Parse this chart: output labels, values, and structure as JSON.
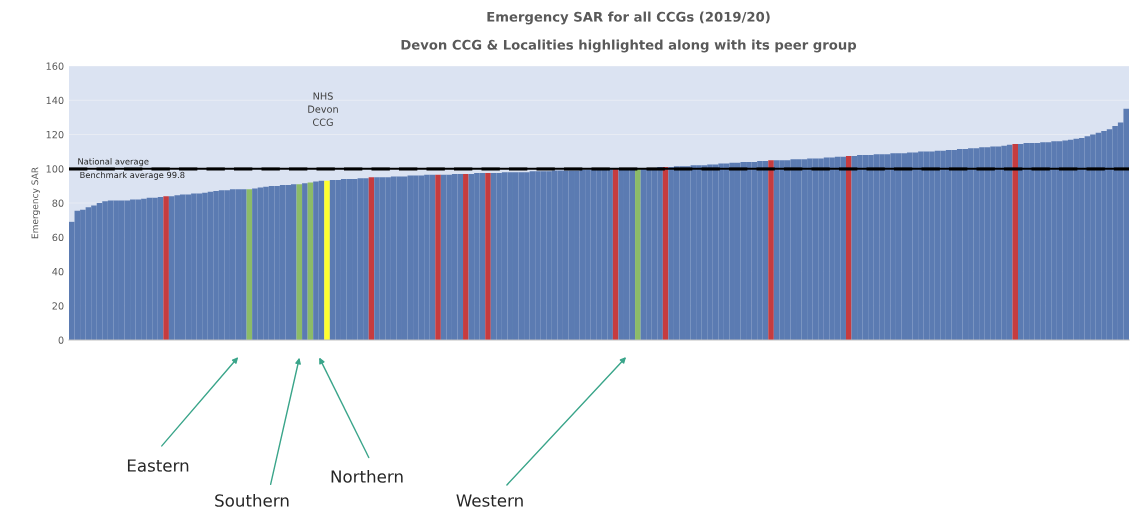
{
  "chart_data": {
    "type": "bar",
    "title": "Emergency SAR for all CCGs (2019/20)",
    "subtitle": "Devon CCG & Localities highlighted along with its peer group",
    "ylabel": "Emergency SAR",
    "categories": [
      null,
      null,
      null,
      null,
      null,
      null,
      null,
      null,
      null,
      null,
      null,
      null,
      null,
      null,
      null,
      null,
      null,
      null,
      null,
      null,
      null,
      null,
      null,
      null,
      null,
      null,
      null,
      null,
      null,
      null,
      null,
      null,
      null,
      null,
      null,
      null,
      null,
      null,
      null,
      null,
      null,
      null,
      null,
      null,
      null,
      null,
      null,
      null,
      null,
      null,
      null,
      null,
      null,
      null,
      null,
      null,
      null,
      null,
      null,
      null,
      null,
      null,
      null,
      null,
      null,
      null,
      null,
      null,
      null,
      null,
      null,
      null,
      null,
      null,
      null,
      null,
      null,
      null,
      null,
      null,
      null,
      null,
      null,
      null,
      null,
      null,
      null,
      null,
      null,
      null,
      null,
      null,
      null,
      null,
      null,
      null,
      null,
      null,
      null,
      null,
      null,
      null,
      null,
      null,
      null,
      null,
      null,
      null,
      null,
      null,
      null,
      null,
      null,
      null,
      null,
      null,
      null,
      null,
      null,
      null,
      null,
      null,
      null,
      null,
      null,
      null,
      null,
      null,
      null,
      null,
      null,
      null,
      null,
      null,
      null,
      null,
      null,
      null,
      null,
      null,
      null,
      null,
      null,
      null,
      null,
      null,
      null,
      null,
      null,
      null,
      null,
      null,
      null,
      null,
      null,
      null,
      null,
      null,
      null,
      null,
      null,
      null,
      null,
      null,
      null,
      null,
      null,
      null,
      null,
      null,
      null,
      null,
      null,
      null,
      null,
      null,
      null,
      null,
      null,
      null,
      null,
      null,
      null,
      null,
      null,
      null,
      null,
      null,
      null,
      null,
      null
    ],
    "values": [
      69,
      75.5,
      76,
      77.5,
      78.5,
      80,
      81,
      81.5,
      81.5,
      81.5,
      81.5,
      82,
      82,
      82.5,
      83,
      83,
      83.5,
      84,
      84,
      84.5,
      85,
      85,
      85.5,
      85.5,
      86,
      86.5,
      87,
      87.5,
      87.5,
      88,
      88,
      88,
      88,
      88.5,
      89,
      89.5,
      90,
      90,
      90.5,
      90.5,
      91,
      91,
      91.5,
      92,
      92.5,
      93,
      93,
      93.5,
      93.5,
      94,
      94,
      94,
      94.5,
      94.5,
      95,
      95,
      95,
      95,
      95.5,
      95.5,
      95.5,
      96,
      96,
      96,
      96.5,
      96.5,
      96.5,
      96.5,
      96.5,
      97,
      97,
      97,
      97,
      97.5,
      97.5,
      97.5,
      97.5,
      97.5,
      98,
      98,
      98,
      98,
      98,
      98.5,
      98.5,
      98.5,
      98.5,
      99,
      99,
      99,
      99,
      99,
      99.5,
      99.5,
      99.5,
      99.5,
      100,
      100,
      100,
      100,
      100,
      100,
      100,
      100.5,
      100.5,
      100.5,
      101,
      101,
      101,
      101.5,
      101.5,
      101.5,
      102,
      102,
      102,
      102.5,
      102.5,
      103,
      103,
      103.5,
      103.5,
      104,
      104,
      104,
      104.5,
      104.5,
      105,
      105,
      105,
      105,
      105.5,
      105.5,
      105.5,
      106,
      106,
      106,
      106.5,
      106.5,
      107,
      107,
      107.5,
      107.5,
      108,
      108,
      108,
      108.5,
      108.5,
      108.5,
      109,
      109,
      109,
      109.5,
      109.5,
      110,
      110,
      110,
      110.5,
      110.5,
      111,
      111,
      111.5,
      111.5,
      112,
      112,
      112.5,
      112.5,
      113,
      113,
      113.5,
      114,
      114.5,
      114.5,
      115,
      115,
      115,
      115.5,
      115.5,
      116,
      116,
      116.5,
      117,
      117.5,
      118,
      119,
      120,
      121,
      122,
      123,
      125,
      127,
      135
    ],
    "colors": [
      "#5b7bb2",
      "#5b7bb2",
      "#5b7bb2",
      "#5b7bb2",
      "#5b7bb2",
      "#5b7bb2",
      "#5b7bb2",
      "#5b7bb2",
      "#5b7bb2",
      "#5b7bb2",
      "#5b7bb2",
      "#5b7bb2",
      "#5b7bb2",
      "#5b7bb2",
      "#5b7bb2",
      "#5b7bb2",
      "#5b7bb2",
      "#c63c3f",
      "#5b7bb2",
      "#5b7bb2",
      "#5b7bb2",
      "#5b7bb2",
      "#5b7bb2",
      "#5b7bb2",
      "#5b7bb2",
      "#5b7bb2",
      "#5b7bb2",
      "#5b7bb2",
      "#5b7bb2",
      "#5b7bb2",
      "#5b7bb2",
      "#5b7bb2",
      "#8cbb68",
      "#5b7bb2",
      "#5b7bb2",
      "#5b7bb2",
      "#5b7bb2",
      "#5b7bb2",
      "#5b7bb2",
      "#5b7bb2",
      "#5b7bb2",
      "#8cbb68",
      "#5b7bb2",
      "#8cbb68",
      "#5b7bb2",
      "#5b7bb2",
      "#ffff2e",
      "#5b7bb2",
      "#5b7bb2",
      "#5b7bb2",
      "#5b7bb2",
      "#5b7bb2",
      "#5b7bb2",
      "#5b7bb2",
      "#c63c3f",
      "#5b7bb2",
      "#5b7bb2",
      "#5b7bb2",
      "#5b7bb2",
      "#5b7bb2",
      "#5b7bb2",
      "#5b7bb2",
      "#5b7bb2",
      "#5b7bb2",
      "#5b7bb2",
      "#5b7bb2",
      "#c63c3f",
      "#5b7bb2",
      "#5b7bb2",
      "#5b7bb2",
      "#5b7bb2",
      "#c63c3f",
      "#5b7bb2",
      "#5b7bb2",
      "#5b7bb2",
      "#c63c3f",
      "#5b7bb2",
      "#5b7bb2",
      "#5b7bb2",
      "#5b7bb2",
      "#5b7bb2",
      "#5b7bb2",
      "#5b7bb2",
      "#5b7bb2",
      "#5b7bb2",
      "#5b7bb2",
      "#5b7bb2",
      "#5b7bb2",
      "#5b7bb2",
      "#5b7bb2",
      "#5b7bb2",
      "#5b7bb2",
      "#5b7bb2",
      "#5b7bb2",
      "#5b7bb2",
      "#5b7bb2",
      "#5b7bb2",
      "#5b7bb2",
      "#c63c3f",
      "#5b7bb2",
      "#5b7bb2",
      "#5b7bb2",
      "#8cbb68",
      "#5b7bb2",
      "#5b7bb2",
      "#5b7bb2",
      "#5b7bb2",
      "#c63c3f",
      "#5b7bb2",
      "#5b7bb2",
      "#5b7bb2",
      "#5b7bb2",
      "#5b7bb2",
      "#5b7bb2",
      "#5b7bb2",
      "#5b7bb2",
      "#5b7bb2",
      "#5b7bb2",
      "#5b7bb2",
      "#5b7bb2",
      "#5b7bb2",
      "#5b7bb2",
      "#5b7bb2",
      "#5b7bb2",
      "#5b7bb2",
      "#5b7bb2",
      "#c63c3f",
      "#5b7bb2",
      "#5b7bb2",
      "#5b7bb2",
      "#5b7bb2",
      "#5b7bb2",
      "#5b7bb2",
      "#5b7bb2",
      "#5b7bb2",
      "#5b7bb2",
      "#5b7bb2",
      "#5b7bb2",
      "#5b7bb2",
      "#5b7bb2",
      "#c63c3f",
      "#5b7bb2",
      "#5b7bb2",
      "#5b7bb2",
      "#5b7bb2",
      "#5b7bb2",
      "#5b7bb2",
      "#5b7bb2",
      "#5b7bb2",
      "#5b7bb2",
      "#5b7bb2",
      "#5b7bb2",
      "#5b7bb2",
      "#5b7bb2",
      "#5b7bb2",
      "#5b7bb2",
      "#5b7bb2",
      "#5b7bb2",
      "#5b7bb2",
      "#5b7bb2",
      "#5b7bb2",
      "#5b7bb2",
      "#5b7bb2",
      "#5b7bb2",
      "#5b7bb2",
      "#5b7bb2",
      "#5b7bb2",
      "#5b7bb2",
      "#5b7bb2",
      "#5b7bb2",
      "#c63c3f",
      "#5b7bb2",
      "#5b7bb2",
      "#5b7bb2",
      "#5b7bb2",
      "#5b7bb2",
      "#5b7bb2",
      "#5b7bb2",
      "#5b7bb2",
      "#5b7bb2",
      "#5b7bb2",
      "#5b7bb2",
      "#5b7bb2",
      "#5b7bb2",
      "#5b7bb2",
      "#5b7bb2",
      "#5b7bb2",
      "#5b7bb2",
      "#5b7bb2",
      "#5b7bb2",
      "#5b7bb2"
    ],
    "ylim": [
      0,
      160
    ],
    "yticks": [
      0,
      20,
      40,
      60,
      80,
      100,
      120,
      140,
      160
    ],
    "grid": "y",
    "tick_labels": "y",
    "ref_lines": [
      {
        "axis": "y",
        "value": 100,
        "label": "National average",
        "color": "#000000",
        "line_style": "solid"
      },
      {
        "axis": "y",
        "value": 99.8,
        "label": "Benchmark average 99.8",
        "color": "#000000",
        "line_style": "dashed"
      }
    ],
    "annotations": [
      "NHS\nDevon\nCCG",
      "Eastern",
      "Southern",
      "Northern",
      "Western"
    ]
  }
}
